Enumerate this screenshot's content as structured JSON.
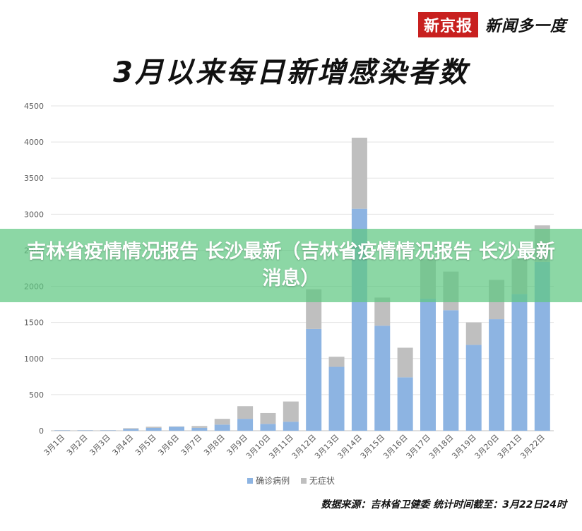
{
  "brand": {
    "name": "新京报",
    "slogan": "新闻多一度"
  },
  "title": "3月以来每日新增感染者数",
  "banner_text": "吉林省疫情情况报告 长沙最新（吉林省疫情情况报告 长沙最新消息）",
  "source_text": "数据来源：吉林省卫健委 统计时间截至：3月22日24时",
  "colors": {
    "confirmed": "#8db4e2",
    "asymptomatic": "#bfbfbf",
    "banner": "#60c882",
    "brand_red": "#c8201f"
  },
  "chart_data": {
    "type": "bar",
    "stacked": true,
    "title": "3月以来每日新增感染者数",
    "categories": [
      "3月1日",
      "3月2日",
      "3月3日",
      "3月4日",
      "3月5日",
      "3月6日",
      "3月7日",
      "3月8日",
      "3月9日",
      "3月10日",
      "3月11日",
      "3月12日",
      "3月13日",
      "3月14日",
      "3月15日",
      "3月16日",
      "3月17日",
      "3月18日",
      "3月19日",
      "3月20日",
      "3月21日",
      "3月22日"
    ],
    "series": [
      {
        "name": "确诊病例",
        "color": "#8db4e2",
        "values": [
          5,
          5,
          5,
          25,
          40,
          55,
          40,
          85,
          165,
          95,
          125,
          1410,
          885,
          3075,
          1455,
          740,
          1830,
          1670,
          1190,
          1545,
          1895,
          2340
        ]
      },
      {
        "name": "无症状",
        "color": "#bfbfbf",
        "values": [
          3,
          3,
          3,
          10,
          15,
          5,
          25,
          80,
          175,
          150,
          280,
          550,
          140,
          985,
          390,
          410,
          545,
          535,
          310,
          545,
          485,
          505
        ]
      }
    ],
    "ylim": [
      0,
      4500
    ],
    "yticks": [
      0,
      500,
      1000,
      1500,
      2000,
      2500,
      3000,
      3500,
      4000,
      4500
    ],
    "grid": true,
    "legend": "bottom-center"
  }
}
